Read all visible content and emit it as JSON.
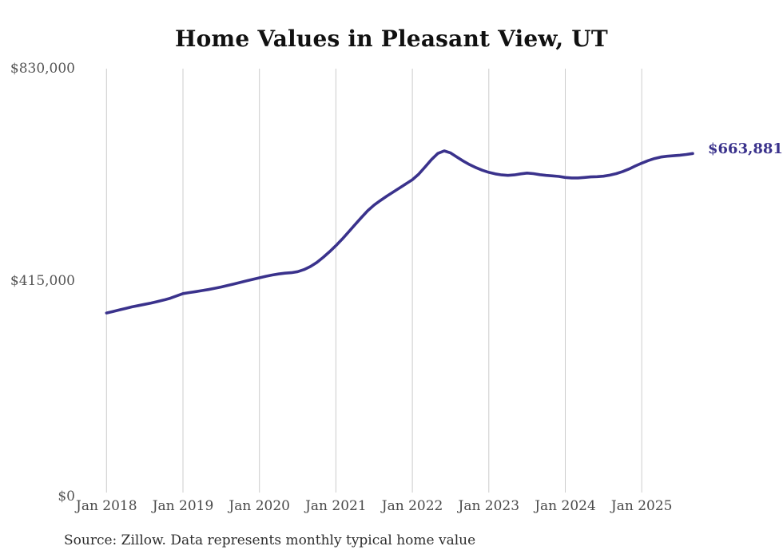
{
  "title": "Home Values in Pleasant View, UT",
  "source": "Source: Zillow. Data represents monthly typical home value",
  "end_label": {
    "text": "$663,881"
  },
  "colors": {
    "line": "#3a328c",
    "gridline": "#cccccc",
    "title": "#111111",
    "axis_text": "#555555",
    "annotation": "#3a328c"
  },
  "chart_data": {
    "type": "line",
    "title": "Home Values in Pleasant View, UT",
    "xlabel": "",
    "ylabel": "",
    "ylim": [
      0,
      830000
    ],
    "grid": "vertical-only",
    "legend_position": "none",
    "x_ticks": [
      "Jan 2018",
      "Jan 2019",
      "Jan 2020",
      "Jan 2021",
      "Jan 2022",
      "Jan 2023",
      "Jan 2024",
      "Jan 2025"
    ],
    "y_ticks": [
      {
        "label": "$830,000",
        "value": 830000
      },
      {
        "label": "$415,000",
        "value": 415000
      },
      {
        "label": "$0",
        "value": 0
      }
    ],
    "series_name": "Typical home value (monthly)",
    "start_month": "2018-01",
    "end_month": "2025-09",
    "last_value_annotation": "$663,881",
    "values": [
      351500,
      354500,
      357500,
      360500,
      363500,
      366000,
      368500,
      371000,
      374000,
      377000,
      380500,
      385000,
      389500,
      391500,
      393500,
      395500,
      397500,
      400000,
      402500,
      405500,
      408500,
      411500,
      414500,
      417500,
      420500,
      423500,
      426000,
      428000,
      429500,
      430500,
      432500,
      436500,
      442500,
      450500,
      460500,
      471500,
      483500,
      496500,
      510500,
      524500,
      538500,
      552000,
      563000,
      572000,
      580500,
      588500,
      596500,
      604500,
      612500,
      623500,
      637500,
      652000,
      664000,
      669000,
      665000,
      657000,
      649000,
      642000,
      636000,
      631000,
      627000,
      624000,
      622000,
      621000,
      622000,
      624000,
      625500,
      624500,
      622500,
      621000,
      620000,
      619000,
      617000,
      616000,
      616000,
      617000,
      618000,
      618500,
      619500,
      621500,
      624500,
      628500,
      633500,
      639500,
      645000,
      650000,
      654000,
      657000,
      658500,
      659500,
      660500,
      662000,
      663881
    ]
  }
}
